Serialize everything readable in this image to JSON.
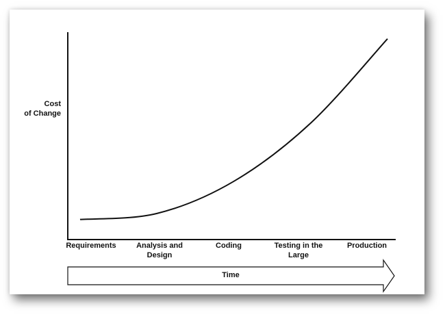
{
  "chart_data": {
    "type": "line",
    "title": "",
    "ylabel": "Cost\nof Change",
    "xlabel": "Time",
    "categories": [
      "Requirements",
      "Analysis and\nDesign",
      "Coding",
      "Testing in the\nLarge",
      "Production"
    ],
    "x": [
      0,
      0.25,
      0.5,
      0.75,
      1.0
    ],
    "series": [
      {
        "values": [
          0.1,
          0.13,
          0.29,
          0.58,
          1.0
        ]
      }
    ],
    "xlim": [
      -0.04,
      1.0
    ],
    "ylim": [
      0,
      1.05
    ],
    "grid": false,
    "legend": "none",
    "colors": {
      "line": "#111111",
      "arrow_fill": "#ffffff",
      "arrow_stroke": "#111111"
    }
  }
}
